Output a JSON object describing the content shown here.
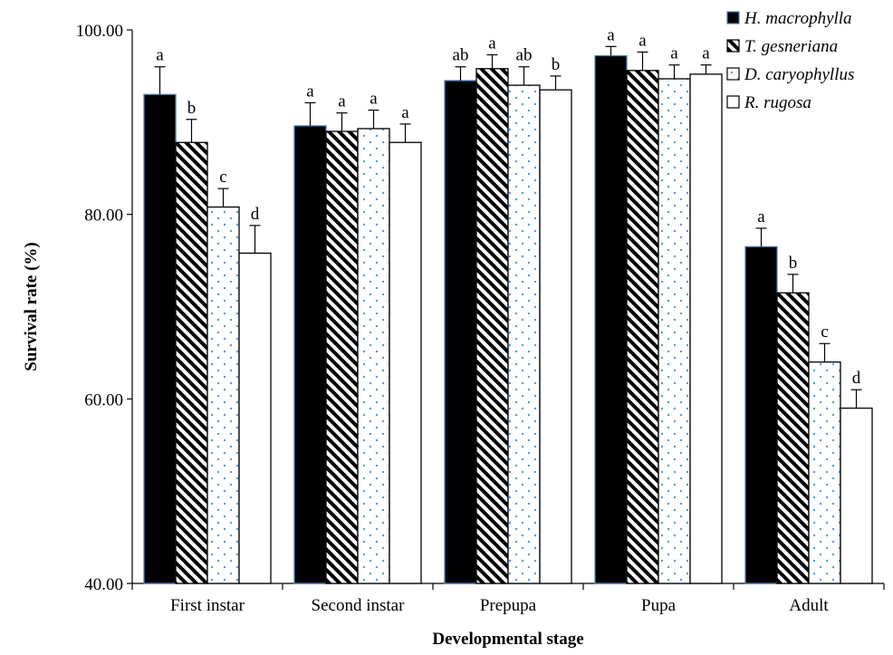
{
  "chart_data": {
    "type": "bar",
    "title": "",
    "xlabel": "Developmental stage",
    "ylabel": "Survival rate (%)",
    "ylim": [
      40,
      100
    ],
    "yticks": [
      "40.00",
      "60.00",
      "80.00",
      "100.00"
    ],
    "ytick_values": [
      40,
      60,
      80,
      100
    ],
    "grid": false,
    "legend_position": "top-right",
    "categories": [
      "First instar",
      "Second instar",
      "Prepupa",
      "Pupa",
      "Adult"
    ],
    "series": [
      {
        "name": "H. macrophylla",
        "pattern": "solid-black",
        "outline": "#4a7ebb",
        "values": [
          93.0,
          89.6,
          94.5,
          97.2,
          76.5
        ],
        "errors": [
          3.0,
          2.5,
          1.5,
          1.0,
          2.0
        ],
        "letters": [
          "a",
          "a",
          "ab",
          "a",
          "a"
        ]
      },
      {
        "name": "T. gesneriana",
        "pattern": "diagonal-stripes",
        "outline": "#000000",
        "values": [
          87.8,
          89.0,
          95.8,
          95.6,
          71.5
        ],
        "errors": [
          2.5,
          2.0,
          1.5,
          2.0,
          2.0
        ],
        "letters": [
          "b",
          "a",
          "a",
          "a",
          "b"
        ]
      },
      {
        "name": "D. caryophyllus",
        "pattern": "blue-dots",
        "outline": "#000000",
        "values": [
          80.8,
          89.3,
          94.0,
          94.7,
          64.0
        ],
        "errors": [
          2.0,
          2.0,
          2.0,
          1.5,
          2.0
        ],
        "letters": [
          "c",
          "a",
          "ab",
          "a",
          "c"
        ]
      },
      {
        "name": "R. rugosa",
        "pattern": "white",
        "outline": "#000000",
        "values": [
          75.8,
          87.8,
          93.5,
          95.2,
          59.0
        ],
        "errors": [
          3.0,
          2.0,
          1.5,
          1.0,
          2.0
        ],
        "letters": [
          "d",
          "a",
          "b",
          "a",
          "d"
        ]
      }
    ]
  }
}
